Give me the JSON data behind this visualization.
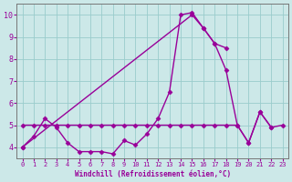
{
  "xlabel": "Windchill (Refroidissement éolien,°C)",
  "background_color": "#cce8e8",
  "grid_color": "#99cccc",
  "line_color": "#990099",
  "xlim": [
    -0.5,
    23.5
  ],
  "ylim": [
    3.5,
    10.5
  ],
  "yticks": [
    4,
    5,
    6,
    7,
    8,
    9,
    10
  ],
  "xticks": [
    0,
    1,
    2,
    3,
    4,
    5,
    6,
    7,
    8,
    9,
    10,
    11,
    12,
    13,
    14,
    15,
    16,
    17,
    18,
    19,
    20,
    21,
    22,
    23
  ],
  "series1_x": [
    0,
    1,
    2,
    3,
    4,
    5,
    6,
    7,
    8,
    9,
    10,
    11,
    12,
    13,
    14,
    15,
    16,
    17,
    18,
    19,
    20,
    21,
    22
  ],
  "series1_y": [
    4.0,
    4.5,
    5.3,
    4.9,
    4.2,
    3.8,
    3.8,
    3.8,
    3.7,
    4.3,
    4.1,
    4.6,
    5.3,
    6.5,
    10.0,
    10.1,
    9.4,
    8.7,
    7.5,
    5.0,
    4.2,
    5.6,
    4.9
  ],
  "series2_x": [
    0,
    15,
    16,
    17,
    18
  ],
  "series2_y": [
    4.0,
    10.0,
    9.4,
    8.7,
    8.5
  ],
  "series3_x": [
    0,
    1,
    2,
    3,
    4,
    5,
    6,
    7,
    8,
    9,
    10,
    11,
    12,
    13,
    14,
    15,
    16,
    17,
    18,
    19,
    20,
    21,
    22,
    23
  ],
  "series3_y": [
    5.0,
    5.0,
    5.0,
    5.0,
    5.0,
    5.0,
    5.0,
    5.0,
    5.0,
    5.0,
    5.0,
    5.0,
    5.0,
    5.0,
    5.0,
    5.0,
    5.0,
    5.0,
    5.0,
    5.0,
    4.2,
    5.6,
    4.9,
    5.0
  ],
  "marker": "D",
  "markersize": 2.5,
  "linewidth": 1.0
}
